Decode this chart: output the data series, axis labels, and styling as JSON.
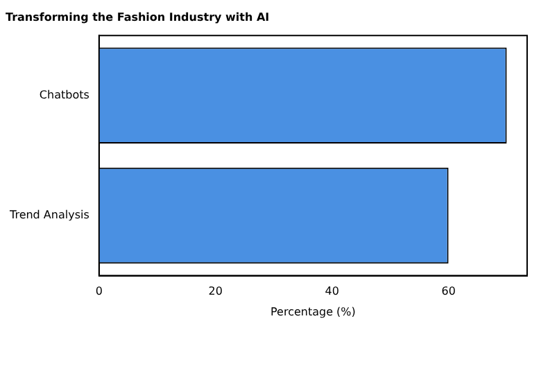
{
  "chart_data": {
    "type": "bar",
    "orientation": "horizontal",
    "title": "Transforming the Fashion Industry with AI",
    "xlabel": "Percentage (%)",
    "categories": [
      "Chatbots",
      "Trend Analysis"
    ],
    "values": [
      70,
      60
    ],
    "color": "#4a90e2",
    "xlim": [
      0,
      73.5
    ],
    "xticks": [
      0,
      20,
      40,
      60
    ],
    "grid": false,
    "legend": false
  }
}
